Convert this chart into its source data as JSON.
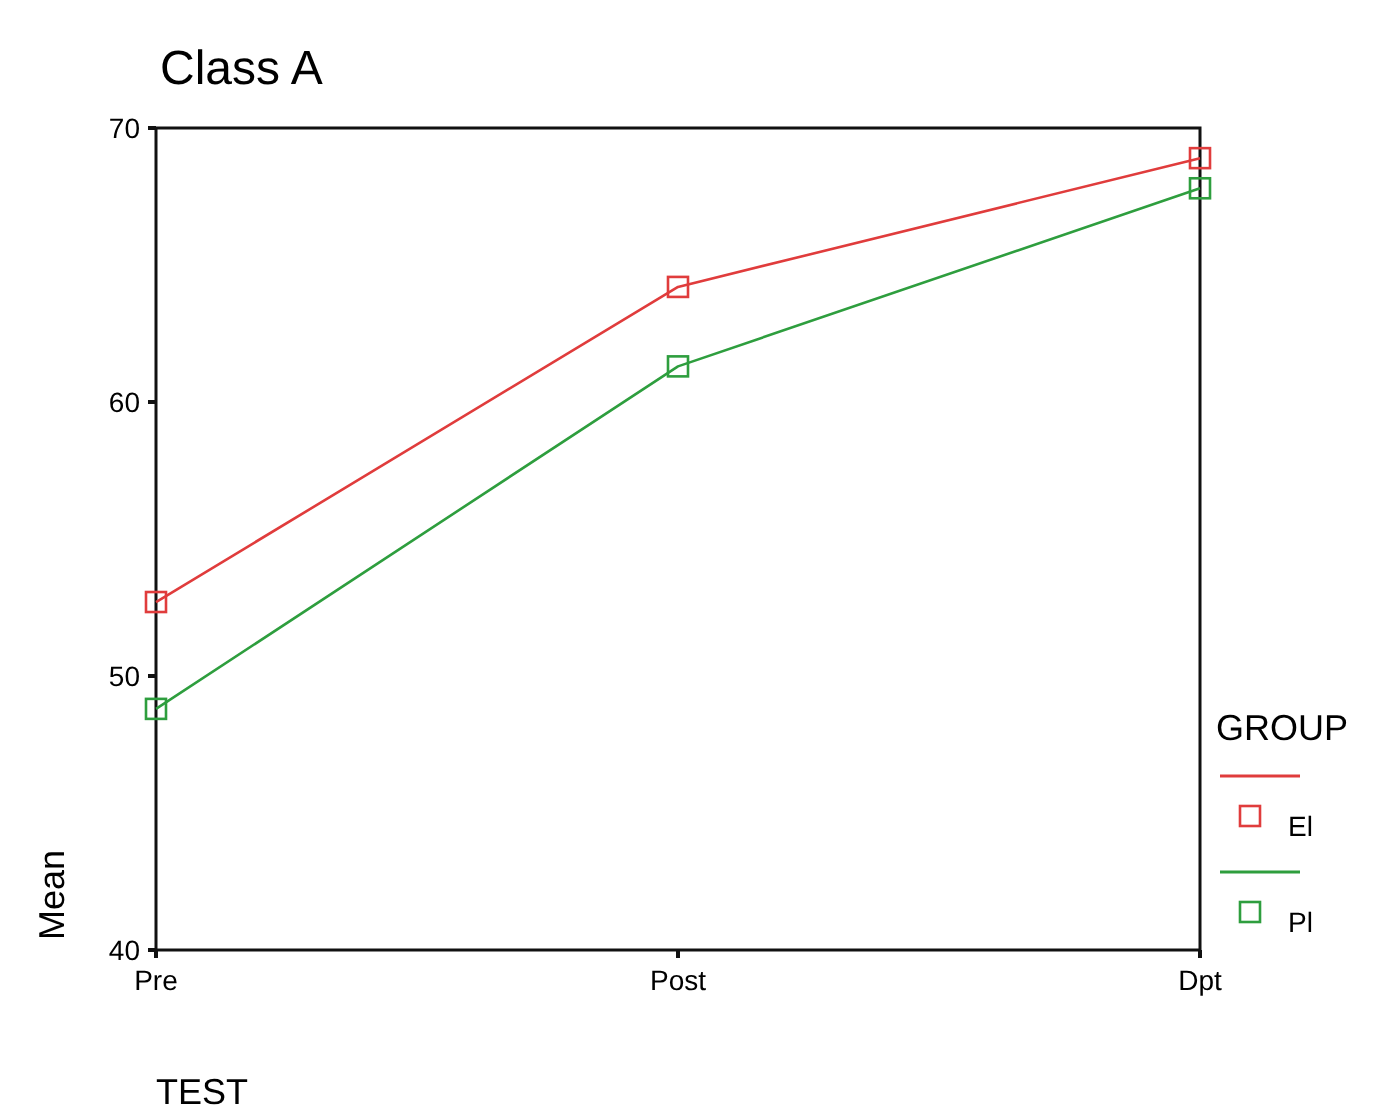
{
  "chart_data": {
    "type": "line",
    "title": "Class A",
    "xlabel": "TEST",
    "ylabel": "Mean",
    "legend_title": "GROUP",
    "categories": [
      "Pre",
      "Post",
      "Dpt"
    ],
    "series": [
      {
        "name": "El",
        "color": "#e03c3c",
        "values": [
          52.7,
          64.2,
          68.9
        ]
      },
      {
        "name": "Pl",
        "color": "#2e9e3e",
        "values": [
          48.8,
          61.3,
          67.8
        ]
      }
    ],
    "ylim": [
      40,
      70
    ],
    "yticks": [
      40,
      50,
      60,
      70
    ],
    "grid": false,
    "legend": "right",
    "marker": "square",
    "line_style": "solid"
  }
}
